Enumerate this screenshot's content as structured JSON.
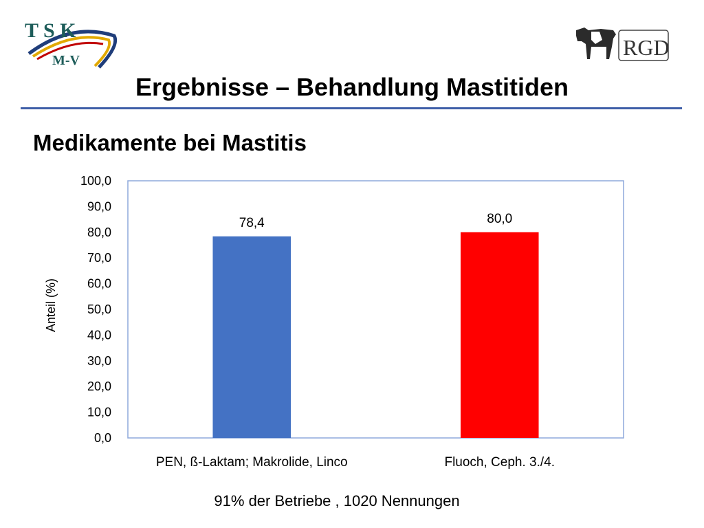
{
  "slide": {
    "title": "Ergebnisse – Behandlung Mastitiden",
    "subtitle": "Medikamente bei Mastitis",
    "footnote": "91% der Betriebe , 1020 Nennungen",
    "rule_color": "#3f5fa8"
  },
  "logos": {
    "left": {
      "text_top": "T S K",
      "text_bottom": "M-V"
    },
    "right": {
      "text": "RGD"
    }
  },
  "chart_data": {
    "type": "bar",
    "categories": [
      "PEN, ß-Laktam; Makrolide, Linco",
      "Fluoch, Ceph. 3./4."
    ],
    "values": [
      78.4,
      80.0
    ],
    "data_labels": [
      "78,4",
      "80,0"
    ],
    "colors": [
      "#4472c4",
      "#ff0000"
    ],
    "ylabel": "Anteil (%)",
    "ylim": [
      0,
      100
    ],
    "yticks": [
      "0,0",
      "10,0",
      "20,0",
      "30,0",
      "40,0",
      "50,0",
      "60,0",
      "70,0",
      "80,0",
      "90,0",
      "100,0"
    ],
    "grid": false,
    "legend": "none"
  }
}
